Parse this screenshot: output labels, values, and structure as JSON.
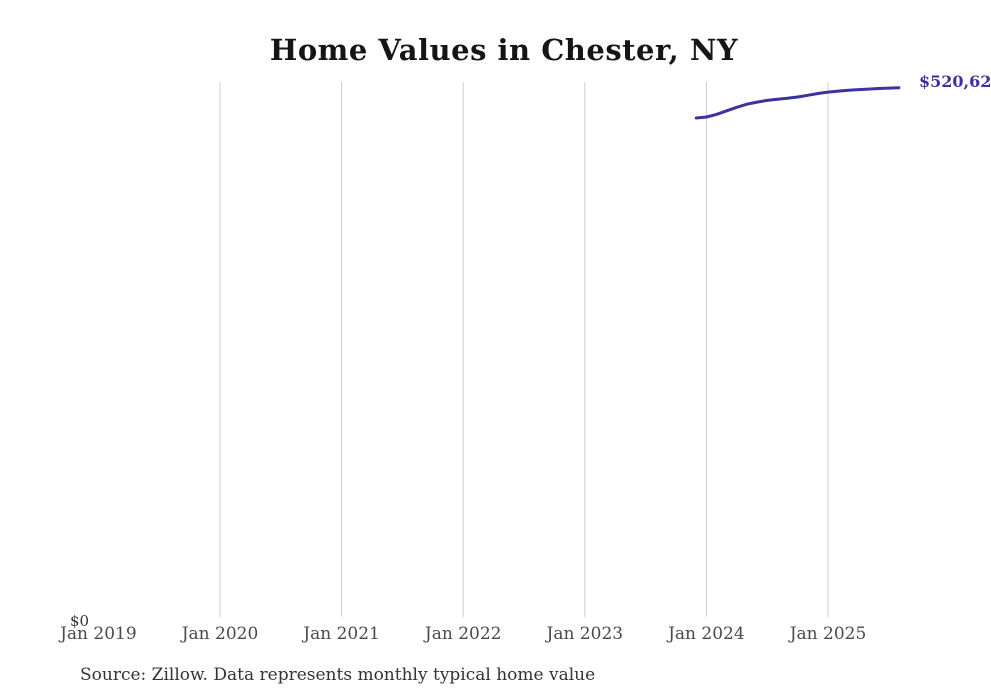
{
  "title": "Home Values in Chester, NY",
  "y_axis": {
    "zero_label": "$0"
  },
  "x_axis": {
    "tick_labels": [
      "Jan 2019",
      "Jan 2020",
      "Jan 2021",
      "Jan 2022",
      "Jan 2023",
      "Jan 2024",
      "Jan 2025"
    ]
  },
  "end_label": "$520,62",
  "source_note": "Source: Zillow. Data represents monthly typical home value",
  "colors": {
    "line": "#3c32a0",
    "grid": "#cccccc",
    "axis_text": "#4a4a4a",
    "title_text": "#151515",
    "note_text": "#333333",
    "end_label_text": "#3c32a0"
  },
  "chart_data": {
    "type": "line",
    "title": "Home Values in Chester, NY",
    "xlabel": "",
    "ylabel": "",
    "ylim": [
      0,
      527000
    ],
    "grid": "vertical gridlines at each January, 2020 through 2025 (none at Jan 2019)",
    "legend_position": "none",
    "x_tick_labels": [
      "Jan 2019",
      "Jan 2020",
      "Jan 2021",
      "Jan 2022",
      "Jan 2023",
      "Jan 2024",
      "Jan 2025"
    ],
    "end_point_label": "$520,62 (cut off at right image edge)",
    "x": [
      "2023-12",
      "2024-01",
      "2024-02",
      "2024-03",
      "2024-04",
      "2024-05",
      "2024-06",
      "2024-07",
      "2024-08",
      "2024-09",
      "2024-10",
      "2024-11",
      "2024-12",
      "2025-01",
      "2025-02",
      "2025-03",
      "2025-04",
      "2025-05",
      "2025-06",
      "2025-07",
      "2025-08"
    ],
    "values": [
      491000,
      492000,
      494500,
      498000,
      501500,
      504500,
      506500,
      508200,
      509300,
      510300,
      511500,
      513200,
      515000,
      516300,
      517300,
      518200,
      518800,
      519300,
      519800,
      520200,
      520625
    ]
  }
}
